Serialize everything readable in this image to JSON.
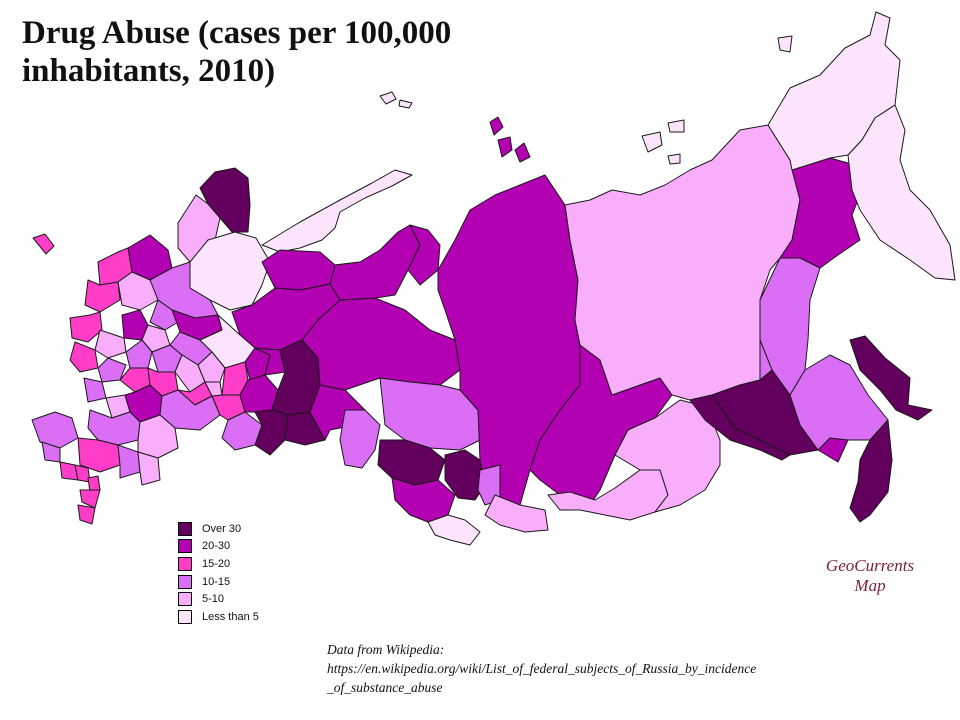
{
  "title": {
    "line1": "Drug Abuse (cases per 100,000",
    "line2": "inhabitants, 2010)"
  },
  "legend": [
    {
      "label": "Over  30",
      "color": "#63005e"
    },
    {
      "label": "20-30",
      "color": "#b300b3"
    },
    {
      "label": "15-20",
      "color": "#ff3dc8"
    },
    {
      "label": "10-15",
      "color": "#da6ff5"
    },
    {
      "label": "5-10",
      "color": "#f9aefc"
    },
    {
      "label": "Less than 5",
      "color": "#fde4fd"
    }
  ],
  "credit": {
    "line1": "GeoCurrents",
    "line2": "Map"
  },
  "source": {
    "line1": "Data from Wikipedia:",
    "line2": "https://en.wikipedia.org/wiki/List_of_federal_subjects_of_Russia_by_incidence",
    "line3": "_of_substance_abuse"
  },
  "colors": {
    "over30": "#63005e",
    "c20_30": "#b300b3",
    "c15_20": "#ff3dc8",
    "c10_15": "#da6ff5",
    "c5_10": "#f9aefc",
    "lt5": "#fde4fd",
    "credit": "#7a1f3a"
  }
}
